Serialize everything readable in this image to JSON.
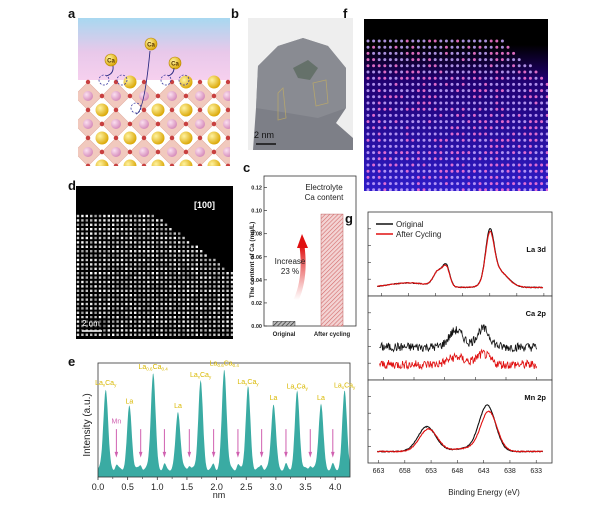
{
  "panels": {
    "a": {
      "label": "a"
    },
    "b": {
      "label": "b",
      "scalebar": "2 nm"
    },
    "c": {
      "label": "c",
      "title_line1": "Electrolyte",
      "title_line2": "Ca content",
      "ylabel": "The content of Ca (mg/L)",
      "annotation_line1": "Increase",
      "annotation_line2": "23 %"
    },
    "d": {
      "label": "d",
      "zone_axis": "[100]",
      "scalebar": "2 nm"
    },
    "e": {
      "label": "e",
      "ylabel": "Intensity (a.u.)",
      "xlabel": "nm",
      "mn_label": "Mn"
    },
    "f": {
      "label": "f"
    },
    "g": {
      "label": "g",
      "legend": [
        "Original",
        "After Cycling"
      ],
      "xlabel": "Binding Energy (eV)",
      "subpanels": [
        "La 3d",
        "Ca 2p",
        "Mn 2p"
      ]
    }
  },
  "chart_data": [
    {
      "id": "c",
      "type": "bar",
      "title": "Electrolyte Ca content",
      "categories": [
        "Original",
        "After cycling"
      ],
      "values": [
        0.004,
        0.097
      ],
      "ylabel": "The content of Ca (mg/L)",
      "xlabel": "",
      "ylim": [
        0,
        0.13
      ],
      "yticks": [
        "0.00",
        "0.02",
        "0.04",
        "0.06",
        "0.08",
        "0.10",
        "0.12"
      ],
      "annotation": "Increase 23 %",
      "colors": [
        "#333333",
        "#d98a8a"
      ]
    },
    {
      "id": "e",
      "type": "area",
      "xlabel": "nm",
      "ylabel": "Intensity (a.u.)",
      "xlim": [
        0,
        4.25
      ],
      "xticks": [
        "0.0",
        "0.5",
        "1.0",
        "1.5",
        "2.0",
        "2.5",
        "3.0",
        "3.5",
        "4.0"
      ],
      "color": "#3aaba3",
      "peaks": [
        {
          "x": 0.13,
          "h": 0.78,
          "label": "LaxCay"
        },
        {
          "x": 0.53,
          "h": 0.62,
          "label": "La"
        },
        {
          "x": 0.93,
          "h": 0.92,
          "label": "La0.6Ca0.4"
        },
        {
          "x": 1.35,
          "h": 0.58,
          "label": "La"
        },
        {
          "x": 1.73,
          "h": 0.85,
          "label": "LaxCay"
        },
        {
          "x": 2.13,
          "h": 0.95,
          "label": "La0.6Ca0.4"
        },
        {
          "x": 2.53,
          "h": 0.79,
          "label": "LaxCay"
        },
        {
          "x": 2.96,
          "h": 0.65,
          "label": "La"
        },
        {
          "x": 3.36,
          "h": 0.75,
          "label": "LaxCay"
        },
        {
          "x": 3.76,
          "h": 0.65,
          "label": "La"
        },
        {
          "x": 4.16,
          "h": 0.76,
          "label": "LaxCay"
        }
      ],
      "mn_arrows_x": [
        0.31,
        0.72,
        1.12,
        1.54,
        1.95,
        2.36,
        2.76,
        3.17,
        3.58,
        3.96
      ],
      "mn_label": "Mn"
    },
    {
      "id": "g-la3d",
      "type": "line",
      "title": "La 3d",
      "xlim": [
        880,
        812
      ],
      "xticks": [
        "875",
        "865",
        "855",
        "845",
        "835",
        "825",
        "815"
      ],
      "series": [
        {
          "name": "Original",
          "color": "#111111"
        },
        {
          "name": "After Cycling",
          "color": "#e01010"
        }
      ]
    },
    {
      "id": "g-ca2p",
      "type": "line",
      "title": "Ca 2p",
      "xlim": [
        362,
        338
      ],
      "xticks": [
        "360",
        "356",
        "352",
        "348",
        "344",
        "340"
      ],
      "series": [
        {
          "name": "Original",
          "color": "#111111"
        },
        {
          "name": "After Cycling",
          "color": "#e01010"
        }
      ]
    },
    {
      "id": "g-mn2p",
      "type": "line",
      "title": "Mn 2p",
      "xlim": [
        665,
        630
      ],
      "xticks": [
        "663",
        "658",
        "653",
        "648",
        "643",
        "638",
        "633"
      ],
      "xlabel": "Binding Energy (eV)",
      "series": [
        {
          "name": "Original",
          "color": "#111111"
        },
        {
          "name": "After Cycling",
          "color": "#e01010"
        }
      ]
    }
  ]
}
